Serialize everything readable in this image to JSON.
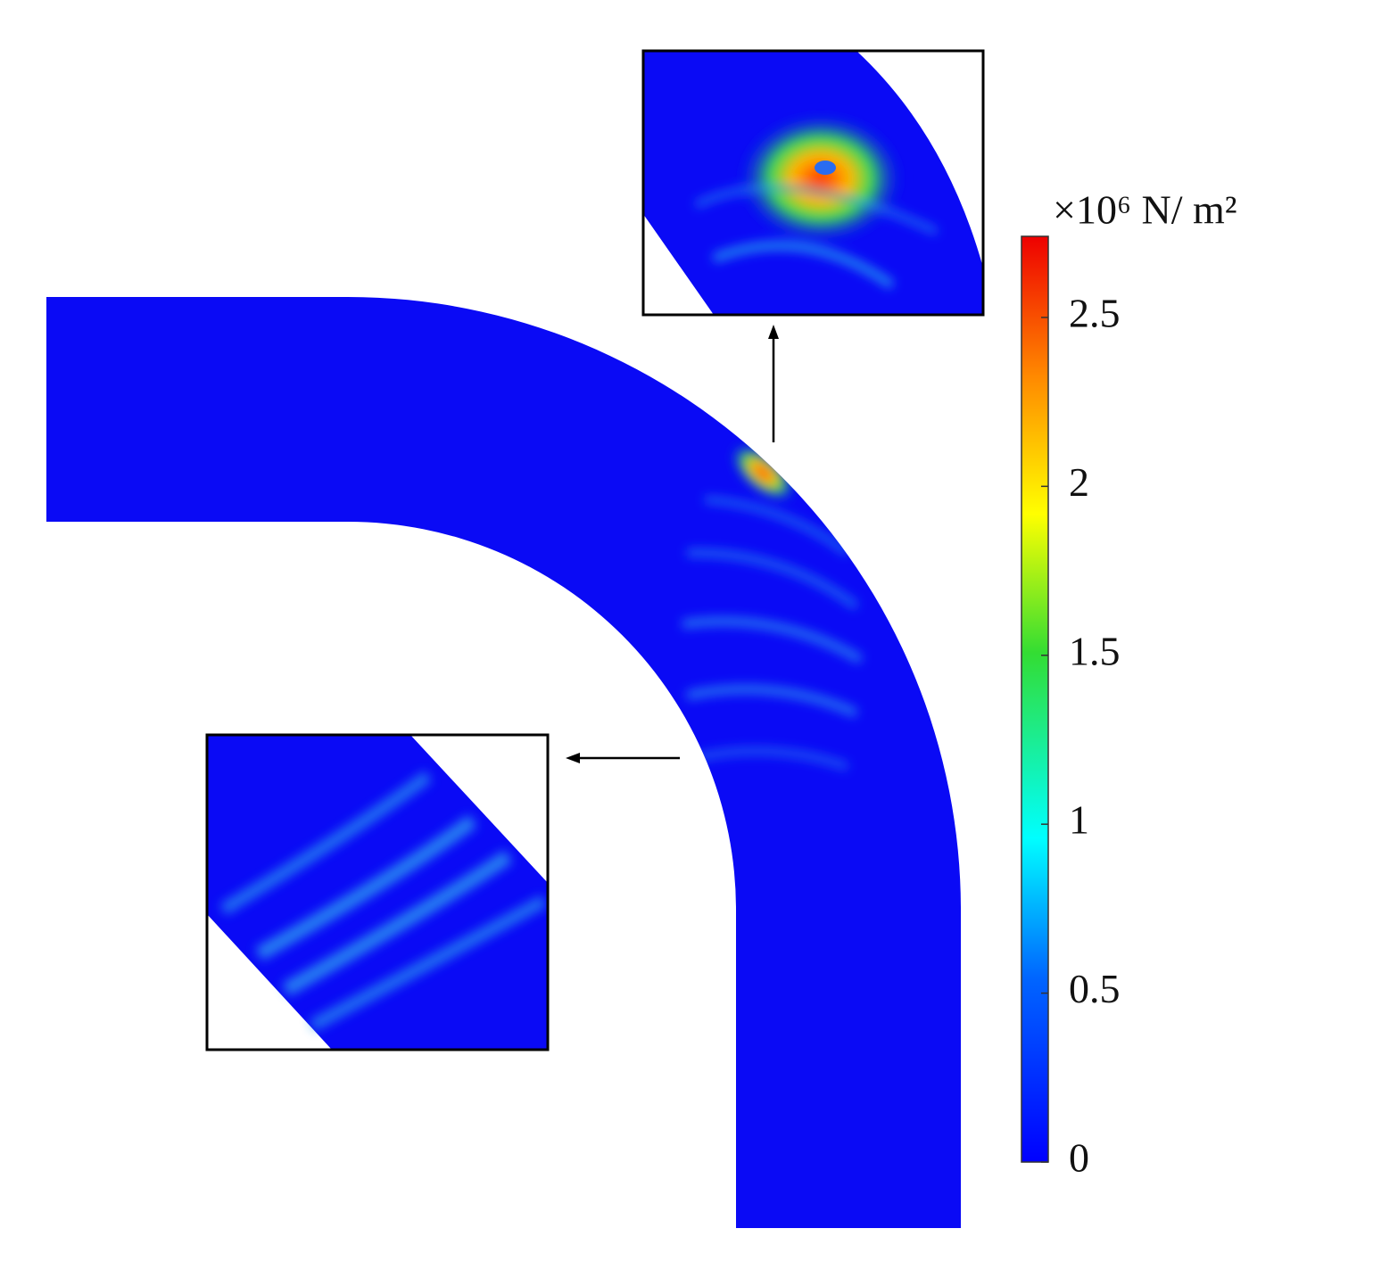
{
  "colorbar": {
    "label": "×10⁶ N/ m²",
    "lim": [
      0,
      2.74
    ],
    "ticks": [
      0,
      0.5,
      1,
      1.5,
      2,
      2.5
    ]
  }
}
